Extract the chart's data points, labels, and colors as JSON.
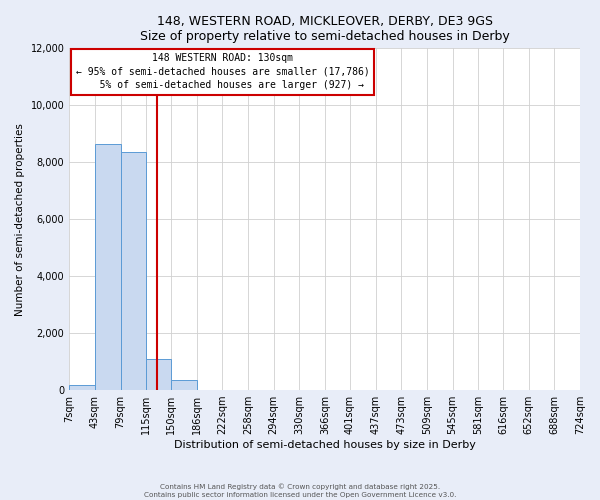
{
  "title": "148, WESTERN ROAD, MICKLEOVER, DERBY, DE3 9GS",
  "subtitle": "Size of property relative to semi-detached houses in Derby",
  "xlabel": "Distribution of semi-detached houses by size in Derby",
  "ylabel": "Number of semi-detached properties",
  "bar_left_edges": [
    7,
    43,
    79,
    115,
    150,
    186,
    222,
    258,
    294,
    330,
    366,
    401,
    437,
    473,
    509,
    545,
    581,
    616,
    652,
    688
  ],
  "bar_widths": [
    36,
    36,
    36,
    35,
    36,
    36,
    36,
    36,
    36,
    36,
    35,
    36,
    36,
    36,
    36,
    36,
    35,
    36,
    36,
    36
  ],
  "bar_heights": [
    180,
    8650,
    8350,
    1100,
    350,
    0,
    0,
    0,
    0,
    0,
    0,
    0,
    0,
    0,
    0,
    0,
    0,
    0,
    0,
    0
  ],
  "bar_color": "#c9d9f0",
  "bar_edgecolor": "#5b9bd5",
  "tick_labels": [
    "7sqm",
    "43sqm",
    "79sqm",
    "115sqm",
    "150sqm",
    "186sqm",
    "222sqm",
    "258sqm",
    "294sqm",
    "330sqm",
    "366sqm",
    "401sqm",
    "437sqm",
    "473sqm",
    "509sqm",
    "545sqm",
    "581sqm",
    "616sqm",
    "652sqm",
    "688sqm",
    "724sqm"
  ],
  "tick_positions": [
    7,
    43,
    79,
    115,
    150,
    186,
    222,
    258,
    294,
    330,
    366,
    401,
    437,
    473,
    509,
    545,
    581,
    616,
    652,
    688,
    724
  ],
  "ylim": [
    0,
    12000
  ],
  "yticks": [
    0,
    2000,
    4000,
    6000,
    8000,
    10000,
    12000
  ],
  "property_line_x": 130,
  "property_line_color": "#cc0000",
  "annotation_line1": "148 WESTERN ROAD: 130sqm",
  "annotation_line2": "← 95% of semi-detached houses are smaller (17,786)",
  "annotation_line3": "   5% of semi-detached houses are larger (927) →",
  "footer1": "Contains HM Land Registry data © Crown copyright and database right 2025.",
  "footer2": "Contains public sector information licensed under the Open Government Licence v3.0.",
  "bg_color": "#e8edf8",
  "plot_bg_color": "#ffffff",
  "xlim_left": 7,
  "xlim_right": 724
}
